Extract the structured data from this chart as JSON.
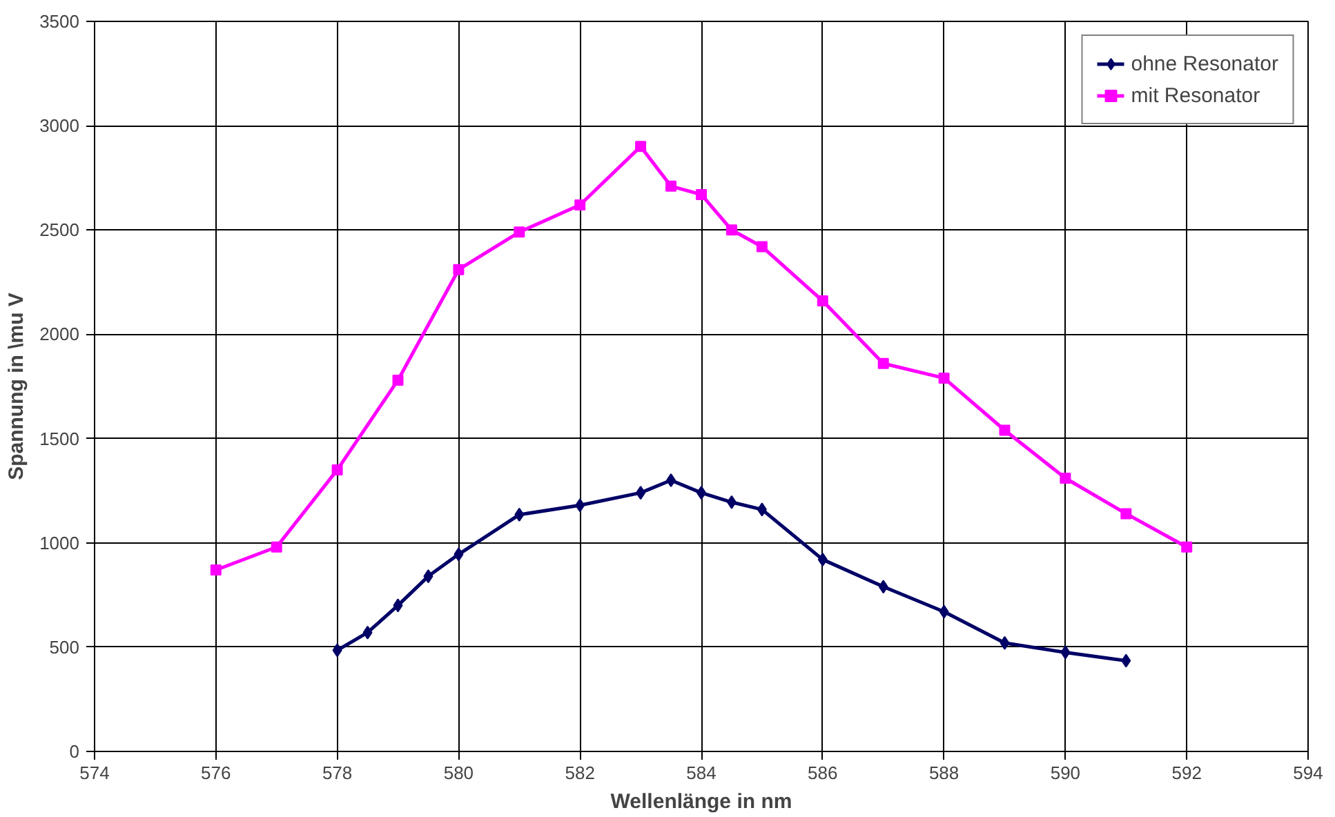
{
  "chart_data": {
    "type": "line",
    "xlabel": "Wellenlänge in nm",
    "ylabel": "Spannung in \\mu V",
    "xlim": [
      574,
      594
    ],
    "xticks": [
      574,
      576,
      578,
      580,
      582,
      584,
      586,
      588,
      590,
      592,
      594
    ],
    "ylim": [
      0,
      3500
    ],
    "yticks": [
      0,
      500,
      1000,
      1500,
      2000,
      2500,
      3000,
      3500
    ],
    "grid": true,
    "legend": "top right",
    "series": [
      {
        "name": "ohne Resonator",
        "color": "#000066",
        "marker": "diamond",
        "x": [
          578,
          578.5,
          579,
          579.5,
          580,
          581,
          582,
          583,
          583.5,
          584,
          584.5,
          585,
          586,
          587,
          588,
          589,
          590,
          591
        ],
        "values": [
          485,
          570,
          700,
          840,
          945,
          1135,
          1180,
          1240,
          1300,
          1240,
          1195,
          1160,
          920,
          790,
          670,
          520,
          475,
          435
        ]
      },
      {
        "name": "mit Resonator",
        "color": "#ff00ff",
        "marker": "square",
        "x": [
          576,
          577,
          578,
          579,
          580,
          581,
          582,
          583,
          583.5,
          584,
          584.5,
          585,
          586,
          587,
          588,
          589,
          590,
          591,
          592
        ],
        "values": [
          870,
          980,
          1350,
          1780,
          2310,
          2490,
          2620,
          2900,
          2710,
          2670,
          2500,
          2420,
          2160,
          1860,
          1790,
          1540,
          1310,
          1140,
          980
        ]
      }
    ]
  }
}
